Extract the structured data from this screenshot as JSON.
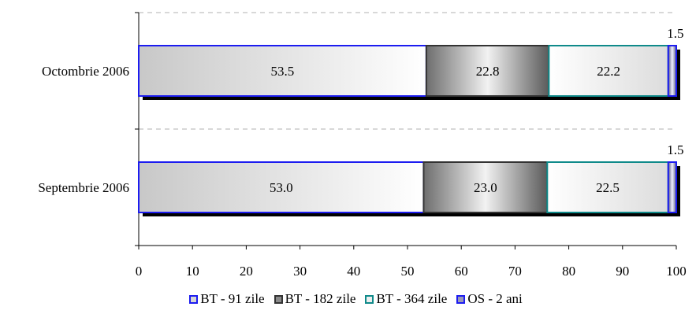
{
  "chart_data": {
    "type": "bar",
    "orientation": "horizontal",
    "stacked": true,
    "categories": [
      "Octombrie 2006",
      "Septembrie 2006"
    ],
    "series": [
      {
        "name": "BT - 91 zile",
        "values": [
          53.5,
          53.0
        ],
        "fill": "#d6d6d6",
        "stroke": "#1c1cf0"
      },
      {
        "name": "BT - 182 zile",
        "values": [
          22.8,
          23.0
        ],
        "fill": "#8a8a8a",
        "stroke": "#333333"
      },
      {
        "name": "BT - 364 zile",
        "values": [
          22.2,
          22.5
        ],
        "fill": "#eeeeee",
        "stroke": "#0f8a8a"
      },
      {
        "name": "OS - 2 ani",
        "values": [
          1.5,
          1.5
        ],
        "fill": "#9a9ab8",
        "stroke": "#1c1cf0"
      }
    ],
    "data_labels": [
      [
        "53.5",
        "22.8",
        "22.2",
        "1.5"
      ],
      [
        "53.0",
        "23.0",
        "22.5",
        "1.5"
      ]
    ],
    "xlim": [
      0,
      100
    ],
    "x_ticks": [
      "0",
      "10",
      "20",
      "30",
      "40",
      "50",
      "60",
      "70",
      "80",
      "90",
      "100"
    ],
    "gridlines": "dashed-horizontal",
    "legend_position": "bottom"
  }
}
